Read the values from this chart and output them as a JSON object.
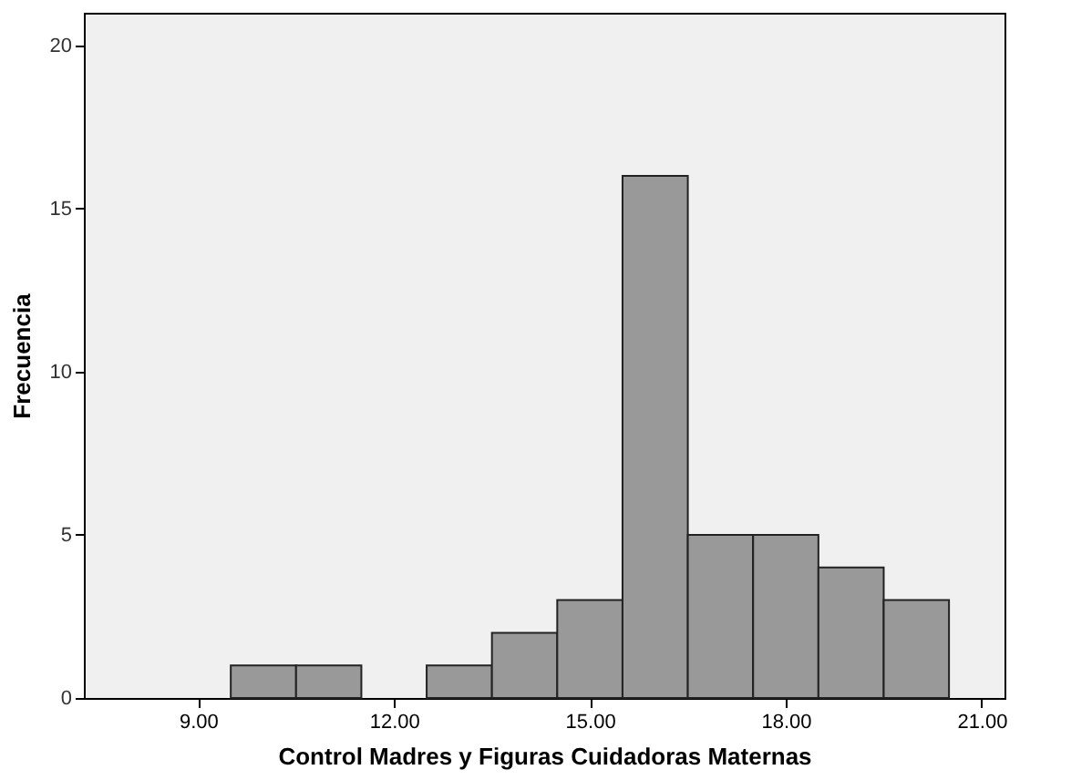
{
  "chart_data": {
    "type": "histogram",
    "xlabel": "Control Madres y Figuras Cuidadoras Maternas",
    "ylabel": "Frecuencia",
    "bins": [
      9.5,
      10.5,
      11.5,
      12.5,
      13.5,
      14.5,
      15.5,
      16.5,
      17.5,
      18.5,
      19.5,
      20.5
    ],
    "values": [
      1,
      1,
      0,
      1,
      2,
      3,
      16,
      5,
      5,
      4,
      3
    ],
    "color": "#999999",
    "xlim": [
      7.25,
      21.35
    ],
    "xticks": [
      {
        "value": 9,
        "label": "9.00"
      },
      {
        "value": 12,
        "label": "12.00"
      },
      {
        "value": 15,
        "label": "15.00"
      },
      {
        "value": 18,
        "label": "18.00"
      },
      {
        "value": 21,
        "label": "21.00"
      }
    ],
    "ylim": [
      0,
      21
    ],
    "yticks": [
      0,
      5,
      10,
      15,
      20
    ],
    "grid": false
  }
}
